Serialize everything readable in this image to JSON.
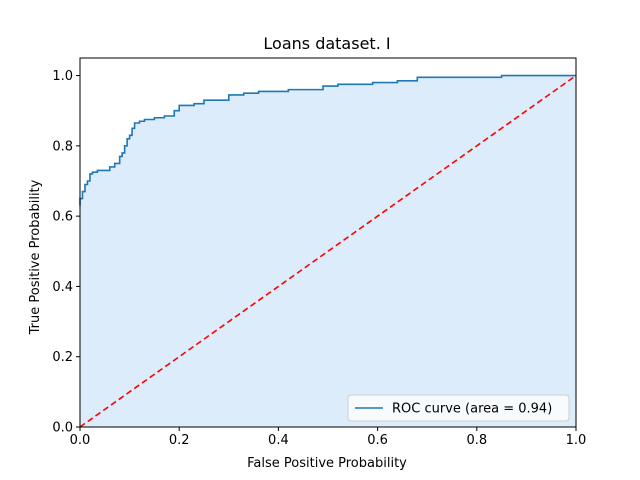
{
  "chart_data": {
    "type": "line",
    "title": "Loans dataset. I",
    "xlabel": "False Positive Probability",
    "ylabel": "True Positive Probability",
    "xlim": [
      0,
      1
    ],
    "ylim": [
      0,
      1.05
    ],
    "xticks": [
      "0.0",
      "0.2",
      "0.4",
      "0.6",
      "0.8",
      "1.0"
    ],
    "yticks": [
      "0.0",
      "0.2",
      "0.4",
      "0.6",
      "0.8",
      "1.0"
    ],
    "legend_placement": "lower-right",
    "grid": false,
    "series": [
      {
        "name": "ROC curve (area = 0.94)",
        "style": "step",
        "color": "#1f77b4",
        "fill": "#dcecfb",
        "x": [
          0.0,
          0.0,
          0.005,
          0.005,
          0.01,
          0.01,
          0.015,
          0.015,
          0.02,
          0.02,
          0.025,
          0.025,
          0.035,
          0.035,
          0.06,
          0.06,
          0.07,
          0.07,
          0.08,
          0.08,
          0.085,
          0.085,
          0.09,
          0.09,
          0.095,
          0.095,
          0.1,
          0.1,
          0.105,
          0.105,
          0.11,
          0.11,
          0.12,
          0.12,
          0.13,
          0.13,
          0.15,
          0.15,
          0.17,
          0.17,
          0.19,
          0.19,
          0.2,
          0.2,
          0.23,
          0.23,
          0.25,
          0.25,
          0.3,
          0.3,
          0.33,
          0.33,
          0.36,
          0.36,
          0.42,
          0.42,
          0.49,
          0.49,
          0.52,
          0.52,
          0.59,
          0.59,
          0.64,
          0.64,
          0.68,
          0.68,
          0.85,
          0.85,
          1.0
        ],
        "y": [
          0.63,
          0.65,
          0.65,
          0.67,
          0.67,
          0.69,
          0.69,
          0.7,
          0.7,
          0.72,
          0.72,
          0.725,
          0.725,
          0.73,
          0.73,
          0.74,
          0.74,
          0.75,
          0.75,
          0.77,
          0.77,
          0.78,
          0.78,
          0.8,
          0.8,
          0.82,
          0.82,
          0.83,
          0.83,
          0.85,
          0.85,
          0.865,
          0.865,
          0.87,
          0.87,
          0.875,
          0.875,
          0.88,
          0.88,
          0.885,
          0.885,
          0.9,
          0.9,
          0.915,
          0.915,
          0.92,
          0.92,
          0.93,
          0.93,
          0.945,
          0.945,
          0.95,
          0.95,
          0.955,
          0.955,
          0.96,
          0.96,
          0.97,
          0.97,
          0.975,
          0.975,
          0.98,
          0.98,
          0.985,
          0.985,
          0.995,
          0.995,
          1.0,
          1.0
        ]
      },
      {
        "name": "",
        "style": "dashed",
        "color": "#ff0000",
        "x": [
          0.0,
          1.0
        ],
        "y": [
          0.0,
          1.0
        ]
      }
    ]
  }
}
